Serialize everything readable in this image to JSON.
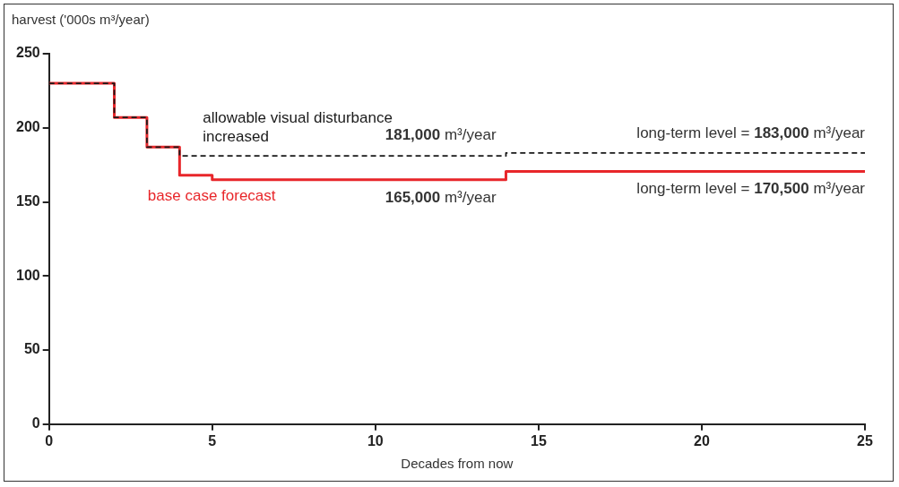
{
  "chart_data": {
    "type": "step",
    "xlabel": "Decades from now",
    "ylabel": "harvest ('000s m³/year)",
    "xlim": [
      0,
      25
    ],
    "xticks": [
      0,
      5,
      10,
      15,
      20,
      25
    ],
    "ylim": [
      0,
      250
    ],
    "yticks": [
      0,
      50,
      100,
      150,
      200,
      250
    ],
    "grid": false,
    "legend": false,
    "marker": "none",
    "series": [
      {
        "name": "base case forecast",
        "color": "#e8262a",
        "line_style": "solid",
        "x": [
          0,
          2,
          3,
          4,
          5,
          14,
          25
        ],
        "values": [
          230,
          207,
          187,
          168,
          165,
          170.5,
          170.5
        ]
      },
      {
        "name": "allowable visual disturbance increased",
        "color": "#1a1a1a",
        "line_style": "dashed",
        "x": [
          0,
          2,
          3,
          4,
          14,
          25
        ],
        "values": [
          230,
          207,
          187,
          181,
          183,
          183
        ]
      }
    ],
    "annotations": [
      "181,000 m³/year",
      "long-term level = 183,000 m³/year",
      "165,000 m³/year",
      "long-term level = 170,500 m³/year"
    ]
  }
}
